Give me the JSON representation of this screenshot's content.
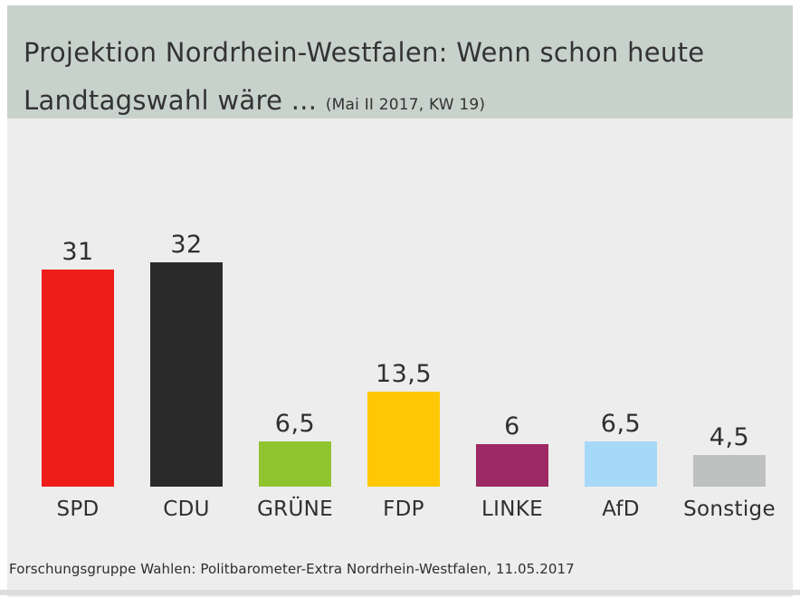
{
  "theme": {
    "header_bg": "#c8d2cc",
    "body_bg": "#ecedec",
    "title_color": "#333333"
  },
  "header": {
    "title_line1": "Projektion Nordrhein-Westfalen: Wenn schon heute",
    "title_line2": "Landtagswahl wäre ...",
    "title_suffix": "(Mai II 2017, KW 19)"
  },
  "footer": {
    "source": "Forschungsgruppe Wahlen: Politbarometer-Extra Nordrhein-Westfalen, 11.05.2017"
  },
  "chart_data": {
    "type": "bar",
    "title": "Projektion Nordrhein-Westfalen: Wenn schon heute Landtagswahl wäre ... (Mai II 2017, KW 19)",
    "categories": [
      "SPD",
      "CDU",
      "GRÜNE",
      "FDP",
      "LINKE",
      "AfD",
      "Sonstige"
    ],
    "values": [
      31,
      32,
      6.5,
      13.5,
      6,
      6.5,
      4.5
    ],
    "value_labels": [
      "31",
      "32",
      "6,5",
      "13,5",
      "6",
      "6,5",
      "4,5"
    ],
    "bar_colors": [
      "#ee1d19",
      "#2a2a2a",
      "#90c42f",
      "#fec804",
      "#9c2963",
      "#a6d8f7",
      "#bfc0c0"
    ],
    "xlabel": "",
    "ylabel": "",
    "ylim": [
      0,
      34
    ],
    "grid": false,
    "legend": false,
    "source": "Forschungsgruppe Wahlen: Politbarometer-Extra Nordrhein-Westfalen, 11.05.2017"
  }
}
